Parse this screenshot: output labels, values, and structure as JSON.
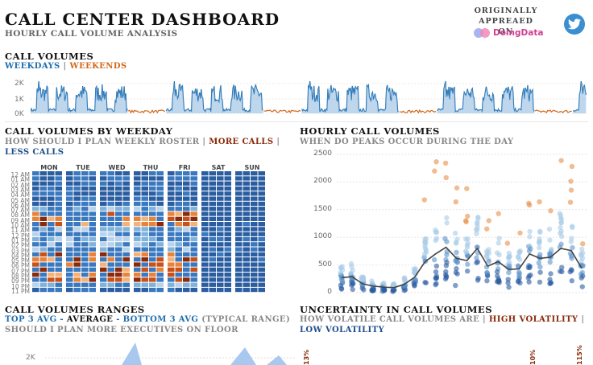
{
  "header": {
    "title": "CALL CENTER DASHBOARD",
    "subtitle": "HOURLY CALL VOLUME ANALYSIS",
    "credit_line1": "ORIGINALLY APPREAED",
    "credit_line2": "ON",
    "brand": "DoingData",
    "twitter_icon": "twitter-icon"
  },
  "call_volumes": {
    "title": "CALL VOLUMES",
    "legend_weekdays": "WEEKDAYS",
    "legend_sep": " | ",
    "legend_weekends": "WEEKENDS",
    "y_ticks": [
      "2K",
      "1K",
      "0K"
    ],
    "weekday_color": "#1f6fb0",
    "weekend_color": "#d0681c"
  },
  "by_weekday": {
    "title": "CALL VOLUMES BY WEEKDAY",
    "sub_prefix": "HOW SHOULD I PLAN WEEKLY ROSTER | ",
    "sub_more": "MORE CALLS",
    "sub_sep": " | ",
    "sub_less": "LESS CALLS",
    "days": [
      "MON",
      "TUE",
      "WED",
      "THU",
      "FRI",
      "SAT",
      "SUN"
    ],
    "hours": [
      "12 AM",
      "01 AM",
      "02 AM",
      "03 AM",
      "04 AM",
      "05 AM",
      "06 AM",
      "07 AM",
      "08 AM",
      "09 AM",
      "10 AM",
      "11 AM",
      "12 PM",
      "01 PM",
      "02 PM",
      "03 PM",
      "04 PM",
      "05 PM",
      "06 PM",
      "07 PM",
      "08 PM",
      "09 PM",
      "10 PM",
      "11 PM"
    ]
  },
  "hourly": {
    "title": "HOURLY CALL VOLUMES",
    "subtitle": "WHEN DO PEAKS OCCUR DURING THE DAY",
    "y_ticks": [
      "2500",
      "2000",
      "1500",
      "1000",
      "500",
      "0"
    ],
    "chart_data": {
      "type": "scatter",
      "x": [
        0,
        1,
        2,
        3,
        4,
        5,
        6,
        7,
        8,
        9,
        10,
        11,
        12,
        13,
        14,
        15,
        16,
        17,
        18,
        19,
        20,
        21,
        22,
        23
      ],
      "average_line": [
        270,
        290,
        160,
        120,
        100,
        90,
        150,
        280,
        560,
        700,
        820,
        620,
        580,
        800,
        480,
        560,
        420,
        430,
        700,
        620,
        640,
        800,
        760,
        440
      ],
      "ylim": [
        0,
        2500
      ],
      "title": "HOURLY CALL VOLUMES"
    }
  },
  "ranges": {
    "title": "CALL VOLUMES RANGES",
    "legend_top": "TOP 3 AVG -",
    "legend_avg": "AVERAGE",
    "legend_bottom": "- BOTTOM 3 AVG",
    "legend_tail": "(TYPICAL RANGE)",
    "subtitle": "SHOULD I PLAN MORE EXECUTIVES ON FLOOR",
    "y_tick": "2K"
  },
  "uncertainty": {
    "title": "UNCERTAINTY IN CALL VOLUMES",
    "sub_prefix": "HOW VOLATILE CALL VOLUMES ARE | ",
    "sub_high": "HIGH VOLATILITY",
    "sub_sep": " | ",
    "sub_low": "LOW VOLATILITY",
    "labels": [
      "13%",
      "10%",
      "115%"
    ]
  }
}
